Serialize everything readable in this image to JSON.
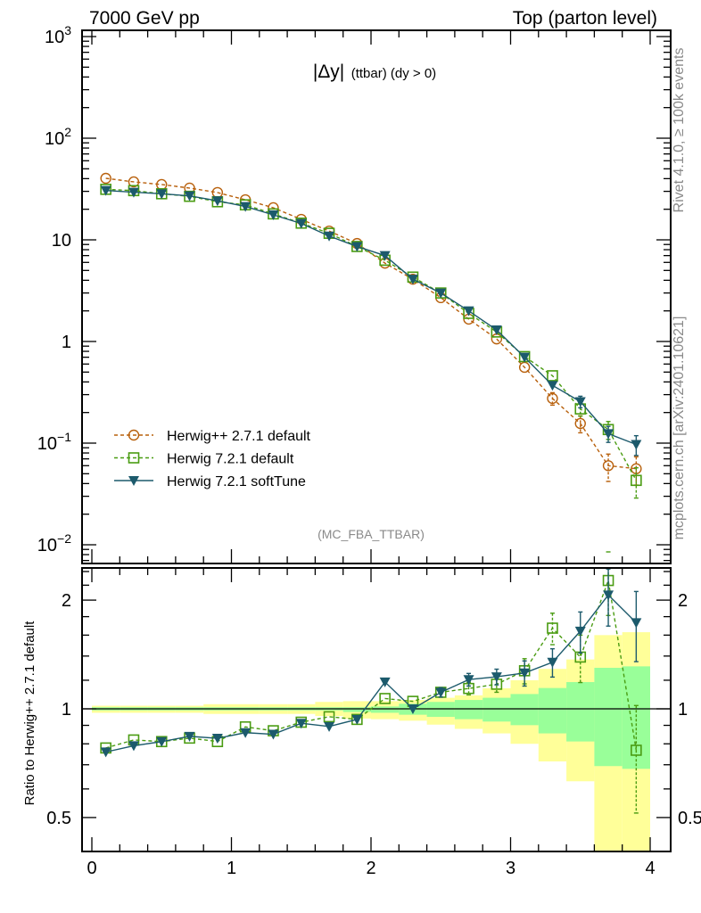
{
  "header": {
    "left_title": "7000 GeV pp",
    "right_title": "Top (parton level)"
  },
  "plot_title": {
    "main": "|Δy|",
    "sub": "(ttbar) (dy > 0)"
  },
  "side_labels": {
    "rivet": "Rivet 4.1.0, ≥ 100k events",
    "mcplots": "mcplots.cern.ch [arXiv:2401.10621]"
  },
  "analysis_tag": "(MC_FBA_TTBAR)",
  "colors": {
    "herwigpp": "#b8600c",
    "herwig721": "#4a9c12",
    "softtune": "#1c5a6c",
    "band_inner": "#99ff99",
    "band_outer": "#ffff99"
  },
  "chart_data": {
    "type": "line",
    "xlabel": "",
    "ylabel": "",
    "xlim": [
      -0.07,
      4.15
    ],
    "ylim": [
      0.0066,
      1100
    ],
    "yscale": "log",
    "x_ticks": [
      "0",
      "1",
      "2",
      "3",
      "4"
    ],
    "y_ticks": [
      {
        "base": "10",
        "exp": "3",
        "value": 1000
      },
      {
        "base": "10",
        "exp": "2",
        "value": 100
      },
      {
        "base": "10",
        "exp": "",
        "value": 10
      },
      {
        "base": "1",
        "exp": "",
        "value": 1
      },
      {
        "base": "10",
        "exp": "−1",
        "value": 0.1
      },
      {
        "base": "10",
        "exp": "−2",
        "value": 0.01
      }
    ],
    "legend_position": "bottom-left",
    "x": [
      0.1,
      0.3,
      0.5,
      0.7,
      0.9,
      1.1,
      1.3,
      1.5,
      1.7,
      1.9,
      2.1,
      2.3,
      2.5,
      2.7,
      2.9,
      3.1,
      3.3,
      3.5,
      3.7,
      3.9
    ],
    "bin_edges": [
      0,
      0.2,
      0.4,
      0.6,
      0.8,
      1.0,
      1.2,
      1.4,
      1.6,
      1.8,
      2.0,
      2.2,
      2.4,
      2.6,
      2.8,
      3.0,
      3.2,
      3.4,
      3.6,
      3.8,
      4.0
    ],
    "series": [
      {
        "name": "Herwig++ 2.7.1 default",
        "key": "herwigpp",
        "marker": "circle",
        "dash": true,
        "values": [
          40.3,
          37.2,
          35.0,
          32.3,
          29.2,
          24.8,
          20.7,
          15.9,
          12.2,
          9.2,
          5.9,
          4.1,
          2.7,
          1.66,
          1.06,
          0.557,
          0.275,
          0.156,
          0.06,
          0.056
        ],
        "rel_err": [
          0.01,
          0.01,
          0.01,
          0.01,
          0.01,
          0.01,
          0.01,
          0.01,
          0.01,
          0.015,
          0.02,
          0.035,
          0.048,
          0.06,
          0.075,
          0.1,
          0.14,
          0.19,
          0.3,
          0.31
        ]
      },
      {
        "name": "Herwig 7.2.1 default",
        "key": "herwig721",
        "marker": "square",
        "dash": true,
        "values": [
          31.4,
          30.5,
          28.4,
          26.8,
          23.7,
          22.1,
          18.0,
          14.6,
          11.6,
          8.6,
          6.3,
          4.3,
          3.0,
          1.89,
          1.24,
          0.71,
          0.46,
          0.217,
          0.136,
          0.043
        ],
        "rel_err": [
          0.01,
          0.01,
          0.01,
          0.01,
          0.01,
          0.01,
          0.01,
          0.01,
          0.01,
          0.01,
          0.015,
          0.02,
          0.03,
          0.04,
          0.05,
          0.08,
          0.1,
          0.15,
          0.2,
          0.33
        ]
      },
      {
        "name": "Herwig 7.2.1 softTune",
        "key": "softtune",
        "marker": "triangle-down",
        "dash": false,
        "values": [
          30.6,
          29.4,
          28.4,
          27.1,
          24.2,
          21.3,
          17.6,
          14.5,
          10.9,
          8.6,
          7.0,
          4.1,
          3.0,
          2.0,
          1.3,
          0.7,
          0.37,
          0.256,
          0.124,
          0.097
        ],
        "rel_err": [
          0.01,
          0.01,
          0.01,
          0.01,
          0.01,
          0.01,
          0.01,
          0.01,
          0.01,
          0.01,
          0.015,
          0.02,
          0.03,
          0.04,
          0.05,
          0.08,
          0.09,
          0.13,
          0.18,
          0.22
        ]
      }
    ],
    "ratio": {
      "ylabel": "Ratio to Herwig++ 2.7.1 default",
      "reference": "herwigpp",
      "ylim": [
        0.4,
        2.45
      ],
      "y_ticks": [
        {
          "label": "0.5",
          "value": 0.5
        },
        {
          "label": "1",
          "value": 1
        },
        {
          "label": "2",
          "value": 2
        }
      ],
      "band_inner": [
        [
          0.99,
          1.01
        ],
        [
          0.99,
          1.01
        ],
        [
          0.99,
          1.01
        ],
        [
          0.99,
          1.01
        ],
        [
          0.99,
          1.01
        ],
        [
          0.99,
          1.01
        ],
        [
          0.99,
          1.01
        ],
        [
          0.99,
          1.01
        ],
        [
          0.99,
          1.01
        ],
        [
          0.98,
          1.01
        ],
        [
          0.975,
          1.015
        ],
        [
          0.963,
          1.033
        ],
        [
          0.95,
          1.045
        ],
        [
          0.936,
          1.058
        ],
        [
          0.922,
          1.073
        ],
        [
          0.901,
          1.099
        ],
        [
          0.855,
          1.142
        ],
        [
          0.812,
          1.186
        ],
        [
          0.694,
          1.299
        ],
        [
          0.682,
          1.311
        ]
      ],
      "band_outer": [
        [
          0.975,
          1.02
        ],
        [
          0.975,
          1.02
        ],
        [
          0.975,
          1.02
        ],
        [
          0.975,
          1.02
        ],
        [
          0.968,
          1.03
        ],
        [
          0.968,
          1.03
        ],
        [
          0.968,
          1.03
        ],
        [
          0.968,
          1.03
        ],
        [
          0.955,
          1.045
        ],
        [
          0.94,
          1.05
        ],
        [
          0.936,
          1.05
        ],
        [
          0.927,
          1.058
        ],
        [
          0.904,
          1.073
        ],
        [
          0.88,
          1.09
        ],
        [
          0.855,
          1.14
        ],
        [
          0.8,
          1.2
        ],
        [
          0.715,
          1.29
        ],
        [
          0.63,
          1.37
        ],
        [
          0.3,
          1.6
        ],
        [
          0.3,
          1.63
        ]
      ]
    }
  }
}
